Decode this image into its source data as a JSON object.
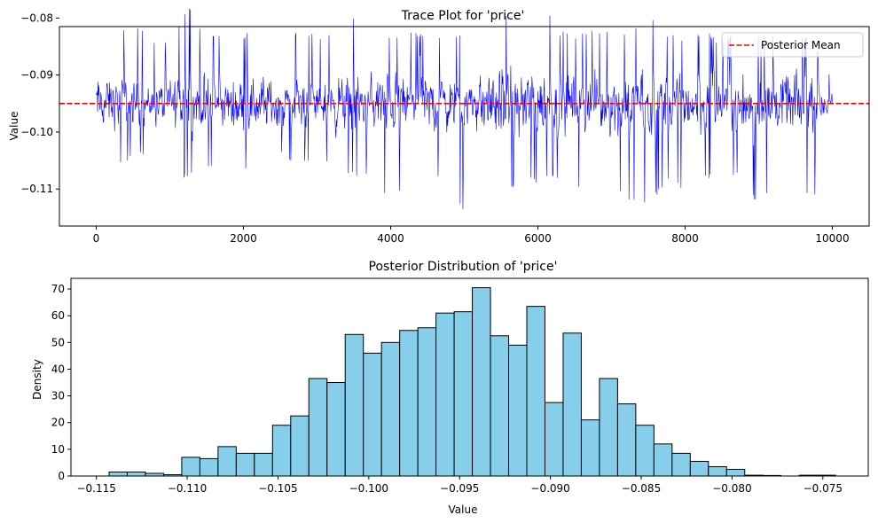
{
  "chart_data": [
    {
      "type": "line",
      "title": "Trace Plot for 'price'",
      "xlabel": "",
      "ylabel": "Value",
      "xlim": [
        -500,
        10500
      ],
      "ylim": [
        -0.1165,
        -0.0815
      ],
      "xticks": [
        0,
        2000,
        4000,
        6000,
        8000,
        10000
      ],
      "xtick_labels": [
        "0",
        "2000",
        "4000",
        "6000",
        "8000",
        "10000"
      ],
      "yticks": [
        -0.11,
        -0.1,
        -0.09,
        -0.08
      ],
      "ytick_labels": [
        "−0.11",
        "−0.10",
        "−0.09",
        "−0.08"
      ],
      "series": [
        {
          "trace_color": "#0000ff",
          "n_samples": 10000,
          "mean": -0.095,
          "min": -0.1143,
          "max": -0.0745,
          "x": [
            0,
            250,
            500,
            750,
            1000,
            1250,
            1500,
            1750,
            2000,
            2250,
            2500,
            2750,
            3000,
            3250,
            3500,
            3750,
            4000,
            4250,
            4500,
            4750,
            5000,
            5250,
            5500,
            5750,
            6000,
            6250,
            6500,
            6750,
            7000,
            7250,
            7500,
            7750,
            8000,
            8250,
            8500,
            8750,
            9000,
            9250,
            9500,
            9750,
            10000
          ],
          "y_low": [
            -0.107,
            -0.106,
            -0.105,
            -0.103,
            -0.109,
            -0.108,
            -0.107,
            -0.105,
            -0.107,
            -0.108,
            -0.104,
            -0.107,
            -0.104,
            -0.107,
            -0.108,
            -0.107,
            -0.113,
            -0.108,
            -0.109,
            -0.108,
            -0.114,
            -0.106,
            -0.113,
            -0.108,
            -0.109,
            -0.108,
            -0.111,
            -0.109,
            -0.11,
            -0.112,
            -0.113,
            -0.109,
            -0.11,
            -0.108,
            -0.109,
            -0.107,
            -0.114,
            -0.108,
            -0.11,
            -0.112,
            -0.1
          ],
          "y_high": [
            -0.083,
            -0.083,
            -0.08,
            -0.084,
            -0.084,
            -0.078,
            -0.083,
            -0.082,
            -0.083,
            -0.079,
            -0.083,
            -0.082,
            -0.083,
            -0.082,
            -0.08,
            -0.078,
            -0.083,
            -0.082,
            -0.083,
            -0.083,
            -0.082,
            -0.084,
            -0.078,
            -0.083,
            -0.074,
            -0.082,
            -0.083,
            -0.082,
            -0.082,
            -0.083,
            -0.079,
            -0.083,
            -0.083,
            -0.082,
            -0.084,
            -0.082,
            -0.083,
            -0.083,
            -0.082,
            -0.084,
            -0.091
          ]
        },
        {
          "name": "Posterior Mean",
          "line_color": "#ff0000",
          "dashed": true,
          "value": -0.095
        }
      ],
      "legend": [
        "Posterior Mean"
      ],
      "legend_position": "top-right",
      "grid": false
    },
    {
      "type": "bar",
      "title": "Posterior Distribution of 'price'",
      "xlabel": "Value",
      "ylabel": "Density",
      "xlim": [
        -0.1164,
        -0.0725
      ],
      "ylim": [
        0,
        74
      ],
      "xticks": [
        -0.115,
        -0.11,
        -0.105,
        -0.1,
        -0.095,
        -0.09,
        -0.085,
        -0.08,
        -0.075
      ],
      "xtick_labels": [
        "−0.115",
        "−0.110",
        "−0.105",
        "−0.100",
        "−0.095",
        "−0.090",
        "−0.085",
        "−0.080",
        "−0.075"
      ],
      "yticks": [
        0,
        10,
        20,
        30,
        40,
        50,
        60,
        70
      ],
      "ytick_labels": [
        "0",
        "10",
        "20",
        "30",
        "40",
        "50",
        "60",
        "70"
      ],
      "bin_start": -0.1143,
      "bin_width": 0.001,
      "values": [
        1.5,
        1.5,
        1.0,
        0.5,
        7.0,
        6.5,
        11.0,
        8.5,
        8.5,
        19.0,
        22.5,
        36.5,
        35.0,
        53.0,
        46.0,
        50.0,
        54.5,
        55.5,
        61.0,
        61.5,
        70.5,
        52.5,
        49.0,
        63.5,
        27.5,
        53.5,
        21.0,
        36.5,
        27.0,
        19.0,
        12.0,
        8.5,
        5.5,
        3.5,
        2.5,
        0.3,
        0.2,
        0.0,
        0.3,
        0.3
      ],
      "bar_color": "#87ceeb",
      "edge_color": "#000000",
      "grid": false
    }
  ]
}
